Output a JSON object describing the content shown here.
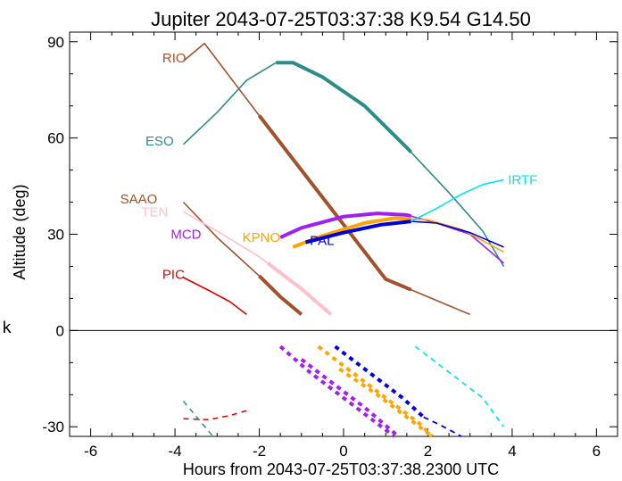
{
  "chart_data": {
    "type": "line",
    "title": "Jupiter 2043-07-25T03:37:38  K9.54  G14.50",
    "xlabel": "Hours from 2043-07-25T03:37:38.2300 UTC",
    "ylabel": "Altitude (deg)",
    "xlim": [
      -6.5,
      6.5
    ],
    "ylim": [
      -33,
      93
    ],
    "xticks": [
      -6,
      -4,
      -2,
      0,
      2,
      4,
      6
    ],
    "yticks": [
      -30,
      0,
      30,
      60,
      90
    ],
    "zero_line": true,
    "side_mark": "k",
    "series": [
      {
        "name": "RIO",
        "color": "#a0522d",
        "points": [
          [
            -3.8,
            84
          ],
          [
            -3.3,
            89.5
          ],
          [
            -2,
            67
          ],
          [
            0,
            33
          ],
          [
            1,
            16
          ],
          [
            2,
            10.5
          ],
          [
            3,
            5
          ]
        ],
        "bold_range": [
          -2,
          1.6
        ],
        "label_xy": [
          -4.3,
          85
        ]
      },
      {
        "name": "ESO",
        "color": "#2e8b88",
        "points": [
          [
            -3.8,
            58
          ],
          [
            -3,
            68
          ],
          [
            -2.3,
            78
          ],
          [
            -1.6,
            83.5
          ],
          [
            -1.2,
            83.5
          ],
          [
            -0.5,
            79
          ],
          [
            0.5,
            70
          ],
          [
            1.5,
            57
          ],
          [
            2.5,
            43
          ],
          [
            3.3,
            31
          ],
          [
            3.8,
            20
          ]
        ],
        "bold_range": [
          -1.6,
          1.6
        ],
        "label_xy": [
          -4.7,
          59
        ]
      },
      {
        "name": "SAAO",
        "color": "#a0522d",
        "points": [
          [
            -3.8,
            40
          ],
          [
            -3,
            29
          ],
          [
            -2,
            17
          ],
          [
            -1.5,
            10.5
          ],
          [
            -1,
            5
          ]
        ],
        "bold_range": [
          -2,
          -1
        ],
        "label_xy": [
          -5.3,
          41
        ]
      },
      {
        "name": "TEN",
        "color": "#ffc0cb",
        "points": [
          [
            -3.8,
            37
          ],
          [
            -3,
            31
          ],
          [
            -2,
            23
          ],
          [
            -1,
            13
          ],
          [
            -0.3,
            5
          ]
        ],
        "bold_range": [
          -1.8,
          -0.3
        ],
        "label_xy": [
          -4.8,
          37
        ]
      },
      {
        "name": "MCD",
        "color": "#a020f0",
        "points": [
          [
            -1.5,
            29
          ],
          [
            -1,
            32
          ],
          [
            0,
            35.5
          ],
          [
            0.8,
            36.5
          ],
          [
            1.5,
            36
          ],
          [
            2.2,
            33.5
          ],
          [
            3,
            30
          ],
          [
            3.8,
            21
          ]
        ],
        "bold_range": [
          -1.5,
          1.6
        ],
        "label_xy": [
          -4.1,
          30
        ]
      },
      {
        "name": "KPNO",
        "color": "#ffa500",
        "points": [
          [
            -1.2,
            26
          ],
          [
            -0.5,
            29.5
          ],
          [
            0.5,
            33.5
          ],
          [
            1.2,
            35
          ],
          [
            2,
            34.5
          ],
          [
            2.8,
            31.5
          ],
          [
            3.8,
            24.5
          ]
        ],
        "bold_range": [
          -1.2,
          1.6
        ],
        "label_xy": [
          -2.4,
          29
        ]
      },
      {
        "name": "PAL",
        "color": "#0000dd",
        "points": [
          [
            -0.9,
            27.5
          ],
          [
            0,
            30.5
          ],
          [
            0.9,
            33
          ],
          [
            1.6,
            34
          ],
          [
            2.2,
            33.5
          ],
          [
            3,
            30.5
          ],
          [
            3.8,
            26
          ]
        ],
        "bold_range": [
          -0.9,
          1.6
        ],
        "label_xy": [
          -0.8,
          28
        ]
      },
      {
        "name": "IRTF",
        "color": "#00e5ee",
        "points": [
          [
            1.6,
            34
          ],
          [
            2.2,
            38
          ],
          [
            2.8,
            42.5
          ],
          [
            3.3,
            45.5
          ],
          [
            3.8,
            47
          ]
        ],
        "bold_range": null,
        "label_xy": [
          3.9,
          47
        ]
      },
      {
        "name": "PIC",
        "color": "#dd0000",
        "points": [
          [
            -3.8,
            16.5
          ],
          [
            -3.2,
            12.5
          ],
          [
            -2.7,
            9
          ],
          [
            -2.3,
            5
          ]
        ],
        "bold_range": null,
        "label_xy": [
          -4.3,
          17.5
        ]
      }
    ],
    "below_horizon": [
      {
        "color": "#2e8b88",
        "dash": "6,5",
        "width": 1.5,
        "points": [
          [
            -3.8,
            -22
          ],
          [
            -3.1,
            -33
          ]
        ]
      },
      {
        "color": "#dd0000",
        "dash": "6,5",
        "width": 1.5,
        "points": [
          [
            -3.8,
            -27.5
          ],
          [
            -3.2,
            -27.8
          ],
          [
            -2.7,
            -26.5
          ],
          [
            -2.3,
            -25
          ]
        ]
      },
      {
        "color": "#a020f0",
        "dash": "5,5",
        "width": 4,
        "points": [
          [
            -1.5,
            -5
          ],
          [
            -0.8,
            -13
          ],
          [
            0,
            -21
          ],
          [
            0.8,
            -29
          ],
          [
            1.2,
            -33
          ]
        ]
      },
      {
        "color": "#a020f0",
        "dash": "5,5",
        "width": 4,
        "points": [
          [
            -1,
            -9
          ],
          [
            -0.3,
            -16
          ],
          [
            0.5,
            -24
          ],
          [
            1.3,
            -33
          ]
        ]
      },
      {
        "color": "#ffa500",
        "dash": "5,5",
        "width": 4,
        "points": [
          [
            -0.6,
            -5
          ],
          [
            0.2,
            -13
          ],
          [
            1,
            -21
          ],
          [
            1.8,
            -29
          ],
          [
            2.1,
            -33
          ]
        ]
      },
      {
        "color": "#ffa500",
        "dash": "5,5",
        "width": 4,
        "points": [
          [
            -0.1,
            -12
          ],
          [
            0.8,
            -20
          ],
          [
            1.6,
            -28
          ],
          [
            2.1,
            -33
          ]
        ]
      },
      {
        "color": "#0000dd",
        "dash": "5,5",
        "width": 4,
        "points": [
          [
            -0.2,
            -5
          ],
          [
            0.6,
            -13
          ],
          [
            1.4,
            -21
          ],
          [
            1.9,
            -27
          ]
        ]
      },
      {
        "color": "#0000dd",
        "dash": "6,5",
        "width": 1.8,
        "points": [
          [
            1.9,
            -27
          ],
          [
            2.3,
            -29.5
          ],
          [
            2.8,
            -33
          ]
        ]
      },
      {
        "color": "#00e5ee",
        "dash": "6,5",
        "width": 1.8,
        "points": [
          [
            1.7,
            -5
          ],
          [
            2.5,
            -13
          ],
          [
            3.3,
            -21
          ],
          [
            3.8,
            -30
          ]
        ]
      }
    ]
  }
}
